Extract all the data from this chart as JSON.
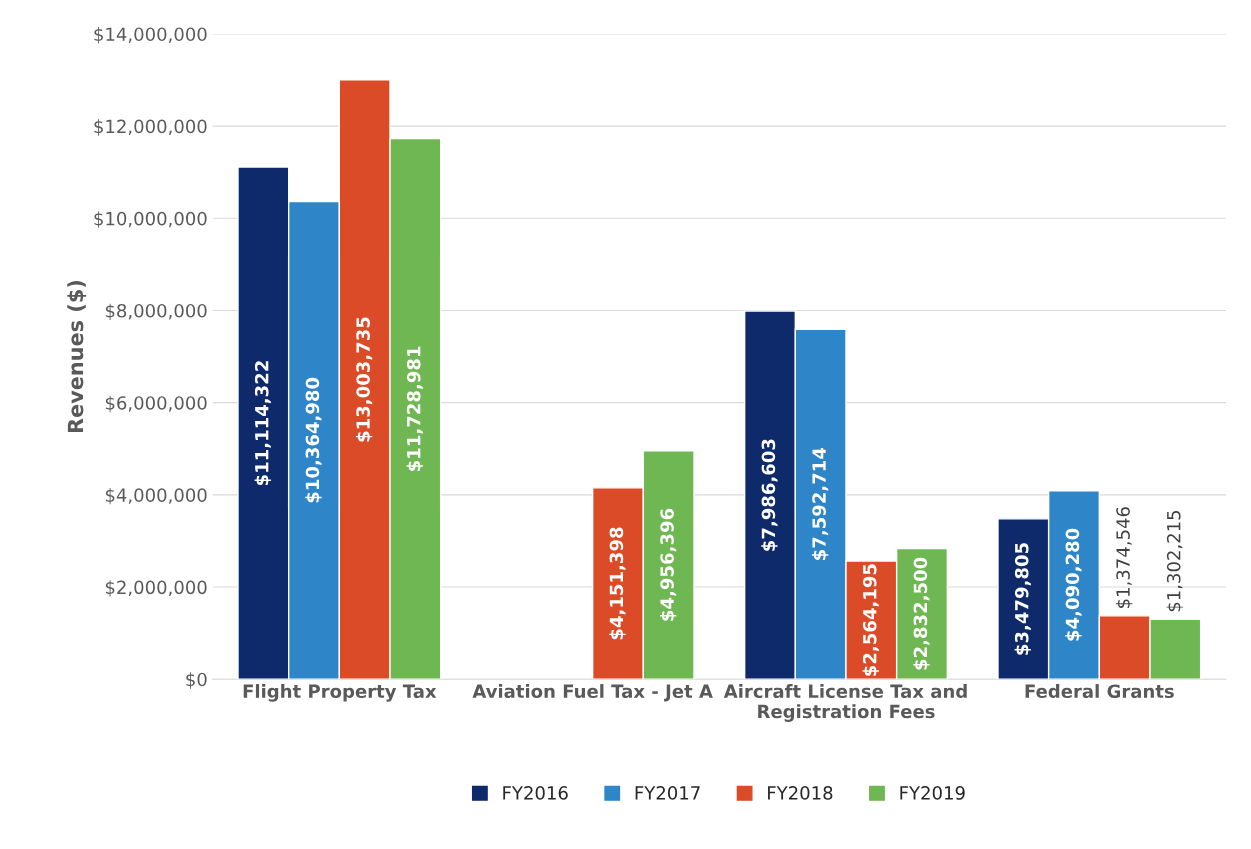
{
  "chart_data": {
    "type": "bar",
    "ylabel": "Revenues ($)",
    "categories": [
      "Flight Property Tax",
      "Aviation Fuel Tax - Jet A",
      "Aircraft License Tax and\nRegistration Fees",
      "Federal Grants"
    ],
    "series": [
      {
        "name": "FY2016",
        "color": "#0e2a6b",
        "values": [
          11114322,
          null,
          7986603,
          3479805
        ],
        "value_labels": [
          "$11,114,322",
          null,
          "$7,986,603",
          "$3,479,805"
        ]
      },
      {
        "name": "FY2017",
        "color": "#2e86c8",
        "values": [
          10364980,
          null,
          7592714,
          4090280
        ],
        "value_labels": [
          "$10,364,980",
          null,
          "$7,592,714",
          "$4,090,280"
        ]
      },
      {
        "name": "FY2018",
        "color": "#dc4b27",
        "values": [
          13003735,
          4151398,
          2564195,
          1374546
        ],
        "value_labels": [
          "$13,003,735",
          "$4,151,398",
          "$2,564,195",
          "$1,374,546"
        ]
      },
      {
        "name": "FY2019",
        "color": "#6fb752",
        "values": [
          11728981,
          4956396,
          2832500,
          1302215
        ],
        "value_labels": [
          "$11,728,981",
          "$4,956,396",
          "$2,832,500",
          "$1,302,215"
        ]
      }
    ],
    "ylim": [
      0,
      14000000
    ],
    "yticks": [
      {
        "value": 0,
        "label": "$0"
      },
      {
        "value": 2000000,
        "label": "$2,000,000"
      },
      {
        "value": 4000000,
        "label": "$4,000,000"
      },
      {
        "value": 6000000,
        "label": "$6,000,000"
      },
      {
        "value": 8000000,
        "label": "$8,000,000"
      },
      {
        "value": 10000000,
        "label": "$10,000,000"
      },
      {
        "value": 12000000,
        "label": "$12,000,000"
      },
      {
        "value": 14000000,
        "label": "$14,000,000"
      }
    ],
    "grid": "y",
    "legend": "bottom"
  }
}
